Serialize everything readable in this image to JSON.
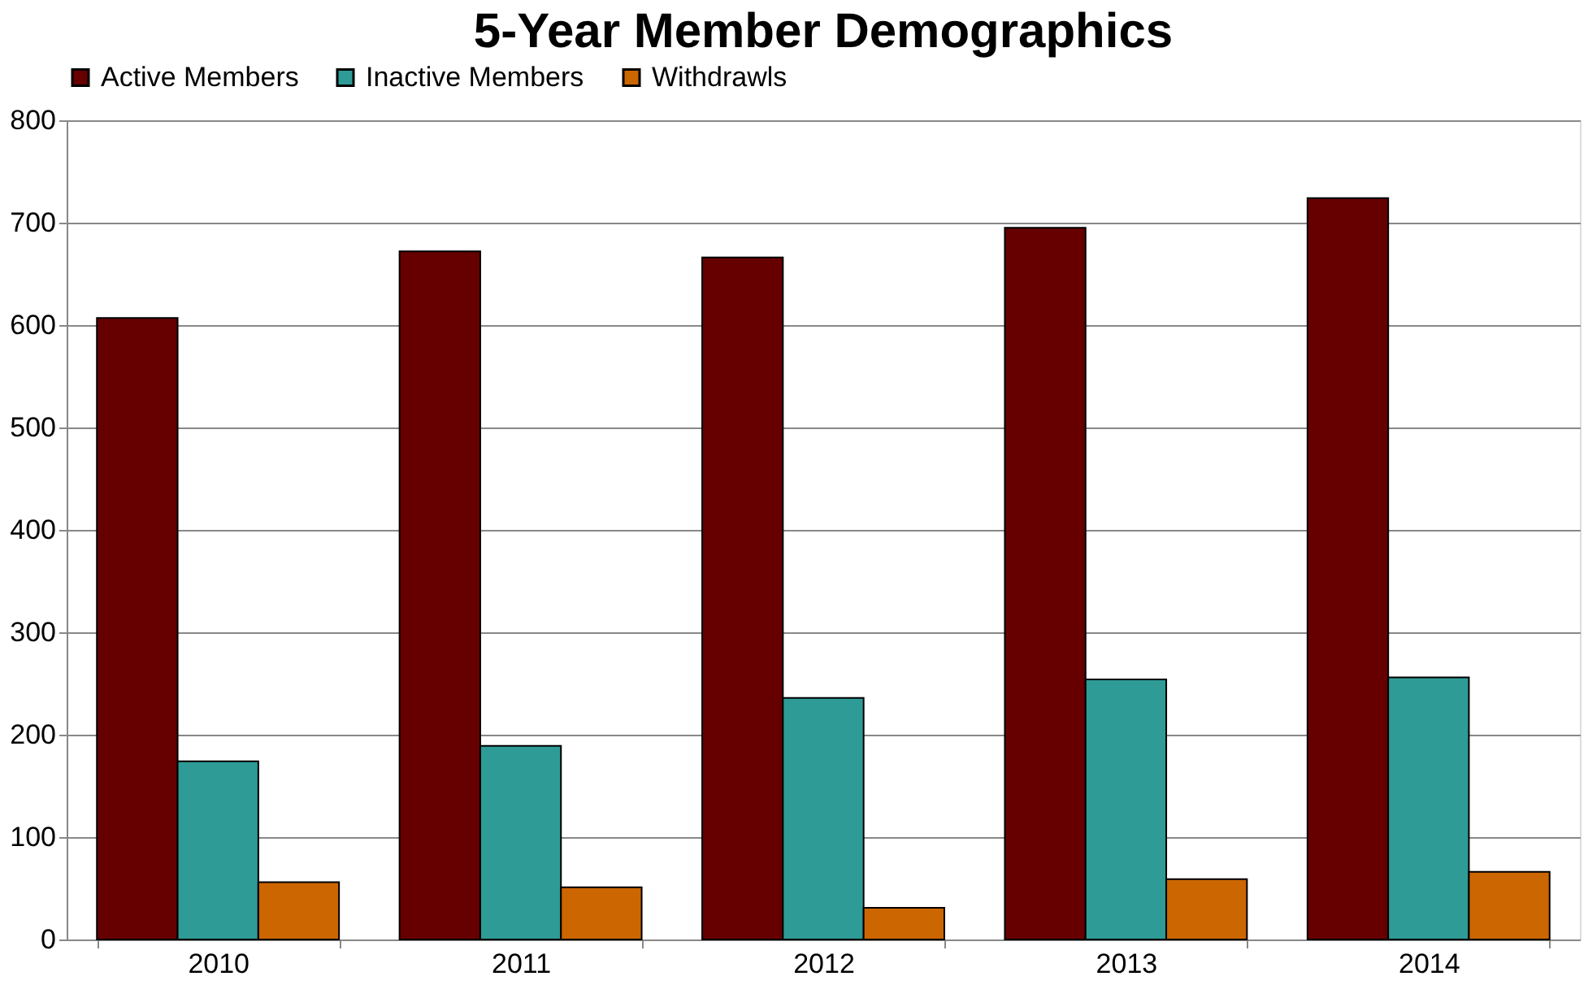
{
  "chart_data": {
    "type": "bar",
    "title": "5-Year Member Demographics",
    "categories": [
      "2010",
      "2011",
      "2012",
      "2013",
      "2014"
    ],
    "series": [
      {
        "name": "Active Members",
        "color": "#660000",
        "values": [
          607,
          672,
          666,
          695,
          724
        ]
      },
      {
        "name": "Inactive Members",
        "color": "#2e9b96",
        "values": [
          174,
          189,
          236,
          254,
          256
        ]
      },
      {
        "name": "Withdrawls",
        "color": "#cc6600",
        "values": [
          56,
          51,
          31,
          59,
          66
        ]
      }
    ],
    "ylim": [
      0,
      800
    ],
    "yticks": [
      0,
      100,
      200,
      300,
      400,
      500,
      600,
      700,
      800
    ],
    "grid": "y",
    "legend": "top"
  }
}
